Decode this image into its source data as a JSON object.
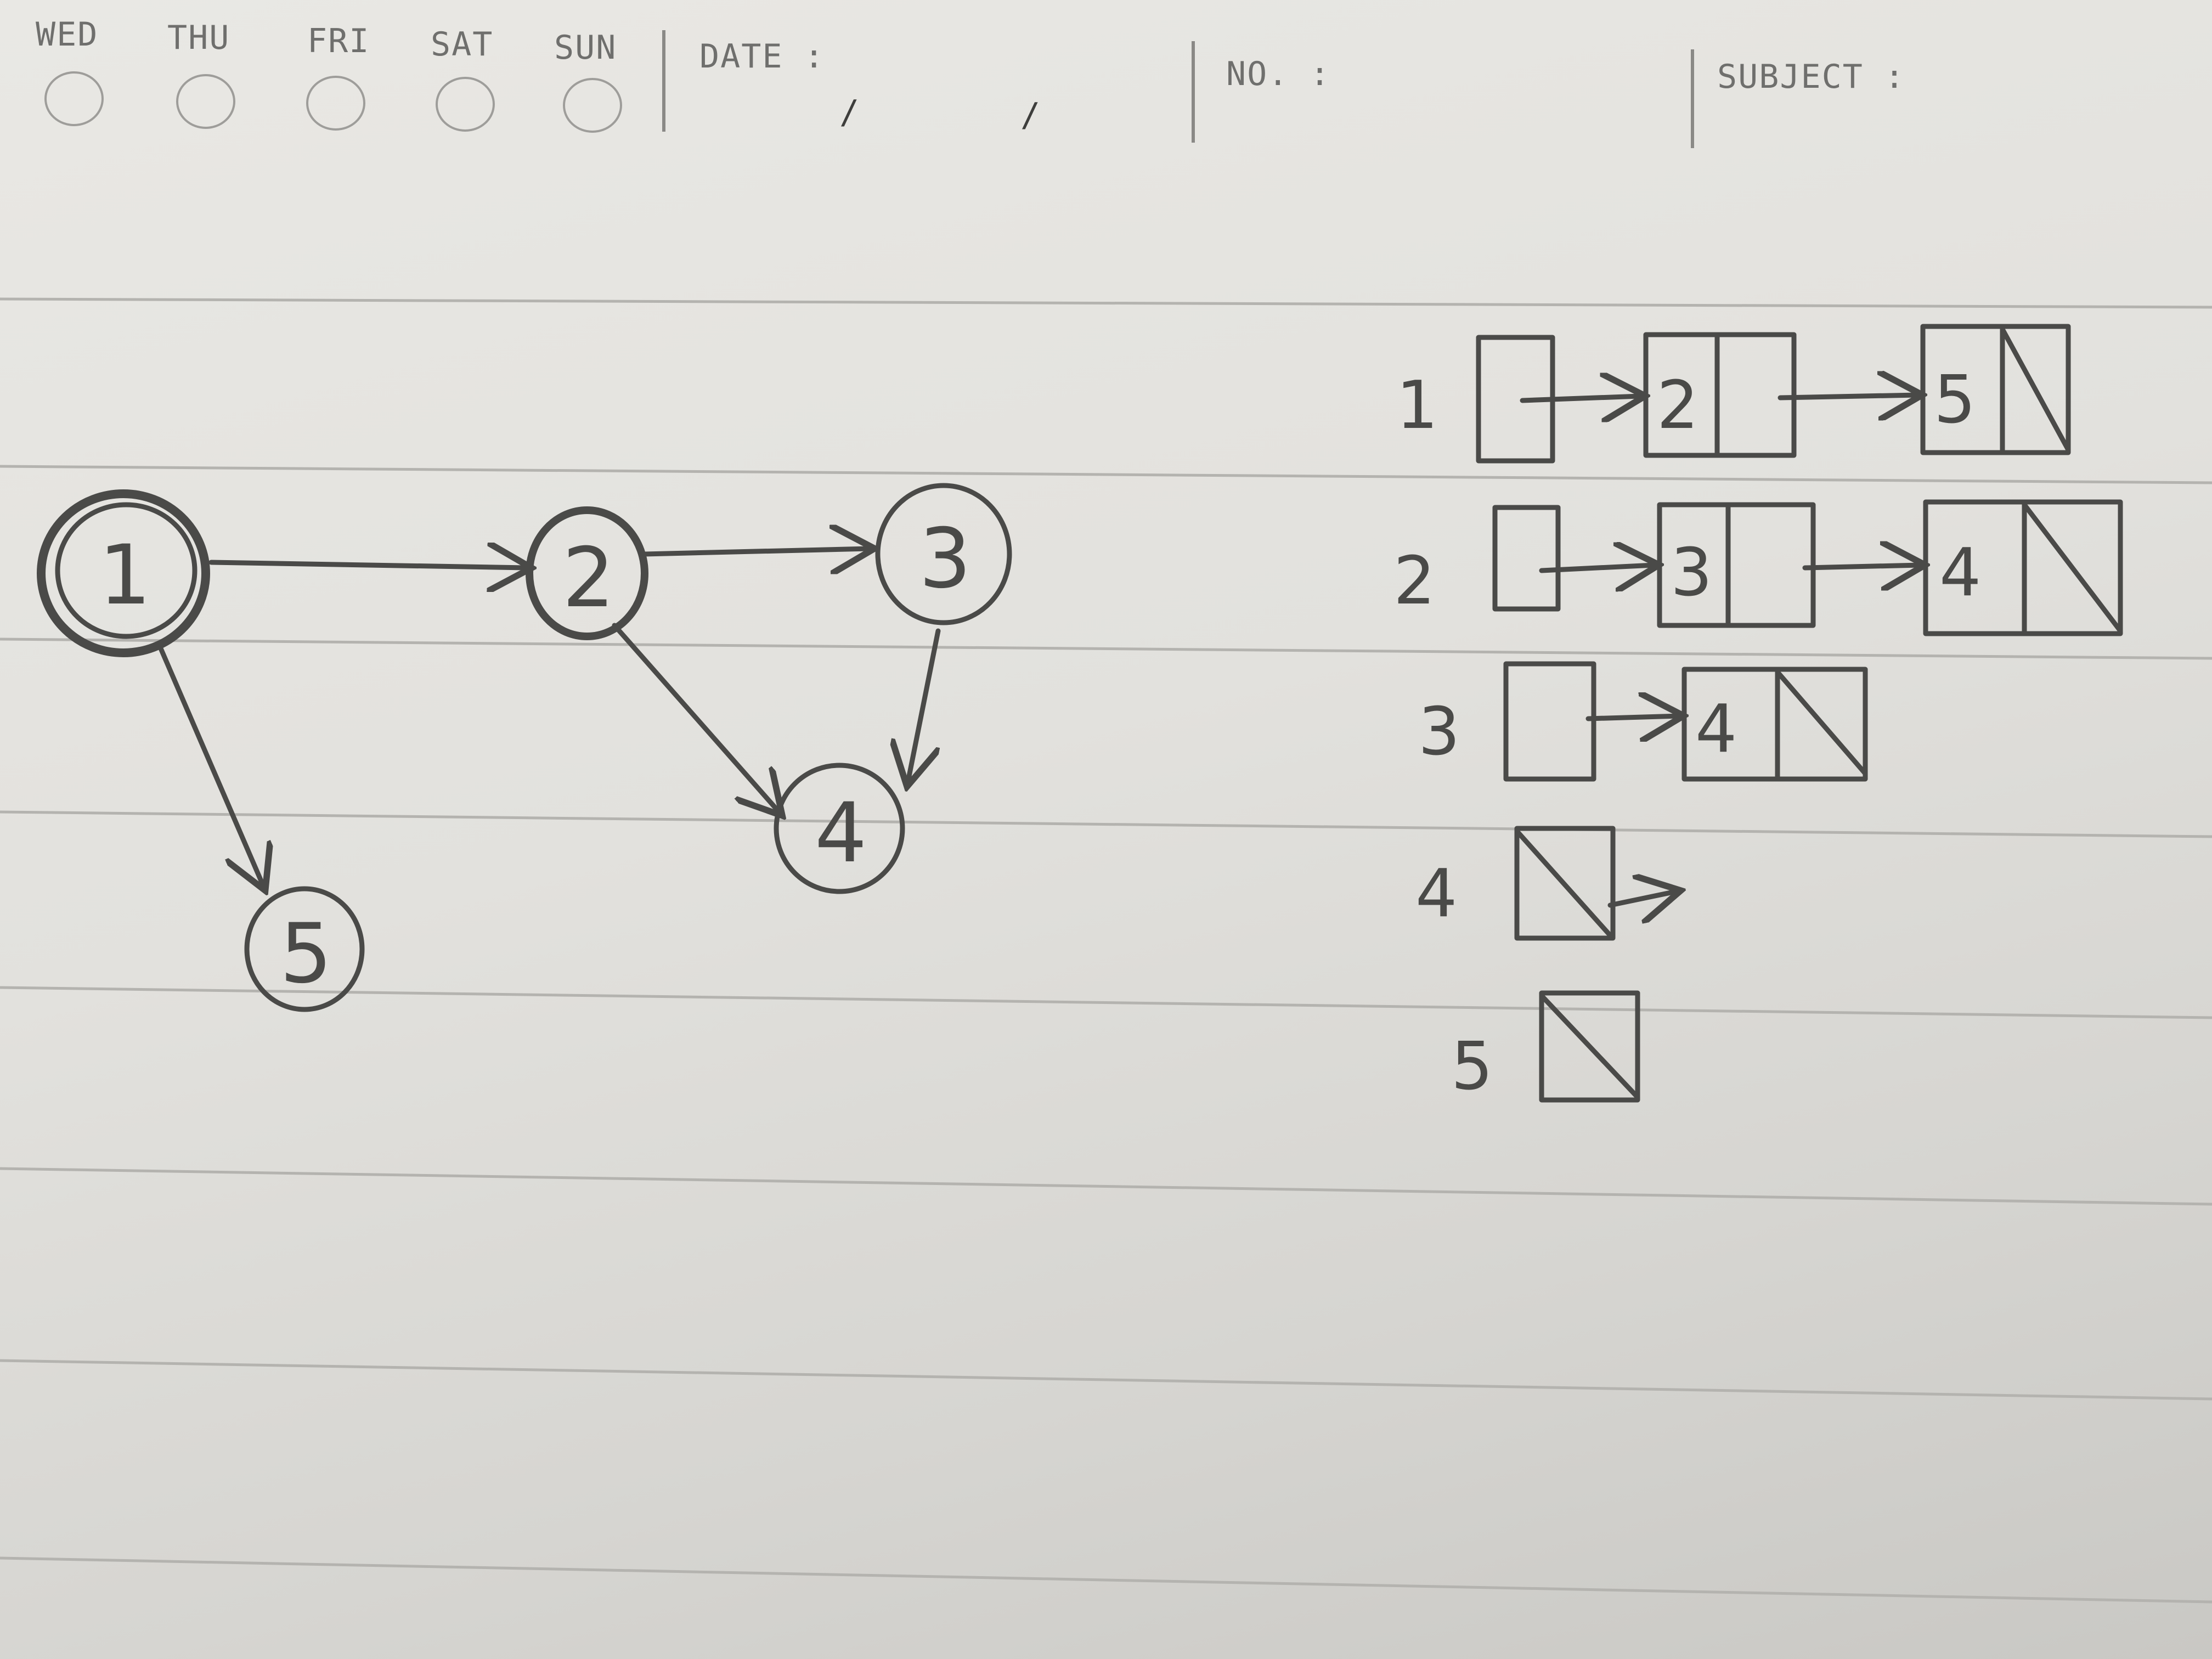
{
  "header": {
    "days": [
      "WED",
      "THU",
      "FRI",
      "SAT",
      "SUN"
    ],
    "date_label": "DATE :",
    "date_slashes": [
      "/",
      "/"
    ],
    "no_label": "NO. :",
    "subject_label": "SUBJECT :"
  },
  "graph": {
    "nodes": [
      "1",
      "2",
      "3",
      "4",
      "5"
    ],
    "edges": [
      [
        "1",
        "2"
      ],
      [
        "1",
        "5"
      ],
      [
        "2",
        "3"
      ],
      [
        "2",
        "4"
      ],
      [
        "3",
        "4"
      ]
    ]
  },
  "adjacency_list": [
    {
      "vertex": "1",
      "neighbors": [
        "2",
        "5"
      ]
    },
    {
      "vertex": "2",
      "neighbors": [
        "3",
        "4"
      ]
    },
    {
      "vertex": "3",
      "neighbors": [
        "4"
      ]
    },
    {
      "vertex": "4",
      "neighbors": []
    },
    {
      "vertex": "5",
      "neighbors": []
    }
  ],
  "colors": {
    "pencil": "#4a4a48",
    "paper": "#e6e5e1",
    "print": "#6f6f6d"
  }
}
